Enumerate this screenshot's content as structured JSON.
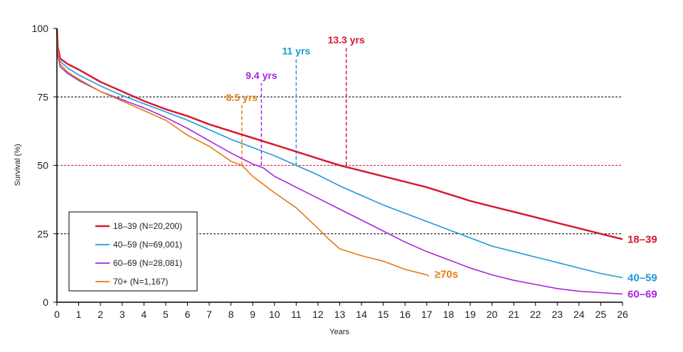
{
  "chart_data": {
    "type": "line",
    "title": "",
    "xlabel": "Years",
    "ylabel": "Survival (%)",
    "xlim": [
      0,
      26
    ],
    "ylim": [
      0,
      100
    ],
    "x_ticks": [
      0,
      1,
      2,
      3,
      4,
      5,
      6,
      7,
      8,
      9,
      10,
      11,
      12,
      13,
      14,
      15,
      16,
      17,
      18,
      19,
      20,
      21,
      22,
      23,
      24,
      25,
      26
    ],
    "y_ticks": [
      0,
      25,
      50,
      75,
      100
    ],
    "reference_lines": [
      {
        "y": 75,
        "color": "#000000",
        "style": "dashed"
      },
      {
        "y": 50,
        "color": "#d7192f",
        "style": "dashed"
      },
      {
        "y": 25,
        "color": "#000000",
        "style": "dashed"
      }
    ],
    "series": [
      {
        "name": "18–39 (N=20,200)",
        "end_label": "18–39",
        "color": "#d7192f",
        "points": [
          [
            0,
            100
          ],
          [
            0.05,
            93
          ],
          [
            0.15,
            89
          ],
          [
            0.5,
            87
          ],
          [
            1,
            85
          ],
          [
            2,
            80.5
          ],
          [
            3,
            77
          ],
          [
            4,
            73.5
          ],
          [
            5,
            70.5
          ],
          [
            6,
            68
          ],
          [
            7,
            65
          ],
          [
            8,
            62.5
          ],
          [
            9,
            60
          ],
          [
            10,
            57.5
          ],
          [
            11,
            55
          ],
          [
            12,
            52.5
          ],
          [
            13,
            50
          ],
          [
            14,
            48
          ],
          [
            15,
            46
          ],
          [
            16,
            44
          ],
          [
            17,
            42
          ],
          [
            18,
            39.5
          ],
          [
            19,
            37
          ],
          [
            20,
            35
          ],
          [
            21,
            33
          ],
          [
            22,
            31
          ],
          [
            23,
            29
          ],
          [
            24,
            27
          ],
          [
            25,
            25
          ],
          [
            26,
            23
          ]
        ]
      },
      {
        "name": "40–59 (N=69,001)",
        "end_label": "40–59",
        "color": "#1e9ad6",
        "points": [
          [
            0,
            100
          ],
          [
            0.05,
            91
          ],
          [
            0.15,
            88
          ],
          [
            0.5,
            85.5
          ],
          [
            1,
            83
          ],
          [
            2,
            79
          ],
          [
            3,
            75.5
          ],
          [
            4,
            72.5
          ],
          [
            5,
            69.5
          ],
          [
            6,
            66.5
          ],
          [
            7,
            63
          ],
          [
            8,
            59.5
          ],
          [
            9,
            56.5
          ],
          [
            10,
            53.5
          ],
          [
            11,
            50
          ],
          [
            12,
            46.5
          ],
          [
            13,
            42.5
          ],
          [
            14,
            39
          ],
          [
            15,
            35.5
          ],
          [
            16,
            32.5
          ],
          [
            17,
            29.5
          ],
          [
            18,
            26.5
          ],
          [
            19,
            23.5
          ],
          [
            20,
            20.5
          ],
          [
            21,
            18.5
          ],
          [
            22,
            16.5
          ],
          [
            23,
            14.5
          ],
          [
            24,
            12.5
          ],
          [
            25,
            10.5
          ],
          [
            26,
            9
          ]
        ]
      },
      {
        "name": "60–69 (N=28,081)",
        "end_label": "60–69",
        "color": "#a626e0",
        "points": [
          [
            0,
            100
          ],
          [
            0.05,
            90
          ],
          [
            0.15,
            86
          ],
          [
            0.5,
            83.5
          ],
          [
            1,
            81
          ],
          [
            2,
            77
          ],
          [
            3,
            74
          ],
          [
            4,
            71
          ],
          [
            5,
            67.5
          ],
          [
            6,
            63.5
          ],
          [
            7,
            59
          ],
          [
            8,
            54.5
          ],
          [
            9,
            50.5
          ],
          [
            9.5,
            49
          ],
          [
            10,
            46
          ],
          [
            11,
            42
          ],
          [
            12,
            38
          ],
          [
            13,
            34
          ],
          [
            14,
            30
          ],
          [
            15,
            26
          ],
          [
            16,
            22
          ],
          [
            17,
            18.5
          ],
          [
            18,
            15.5
          ],
          [
            19,
            12.5
          ],
          [
            20,
            10
          ],
          [
            21,
            8
          ],
          [
            22,
            6.5
          ],
          [
            23,
            5
          ],
          [
            24,
            4
          ],
          [
            25,
            3.5
          ],
          [
            26,
            3
          ]
        ]
      },
      {
        "name": "70+ (N=1,167)",
        "end_label": "≥70s",
        "color": "#e57a14",
        "points": [
          [
            0,
            100
          ],
          [
            0.05,
            92
          ],
          [
            0.15,
            87
          ],
          [
            0.5,
            84
          ],
          [
            1,
            81.5
          ],
          [
            2,
            77
          ],
          [
            3,
            73.5
          ],
          [
            4,
            70
          ],
          [
            5,
            66.5
          ],
          [
            6,
            61
          ],
          [
            7,
            57
          ],
          [
            8,
            51.5
          ],
          [
            8.5,
            50
          ],
          [
            9,
            46
          ],
          [
            10,
            40
          ],
          [
            11,
            34.5
          ],
          [
            12,
            27
          ],
          [
            12.5,
            23
          ],
          [
            13,
            19.5
          ],
          [
            14,
            17
          ],
          [
            15,
            15
          ],
          [
            16,
            12
          ],
          [
            17,
            10
          ],
          [
            17.1,
            9.5
          ]
        ]
      }
    ],
    "medians": [
      {
        "label": "8.5 yrs",
        "color": "#e57a14",
        "x": 8.5,
        "top": 72
      },
      {
        "label": "9.4 yrs",
        "color": "#a626e0",
        "x": 9.4,
        "top": 80
      },
      {
        "label": "11 yrs",
        "color": "#1e9ad6",
        "x": 11,
        "top": 89
      },
      {
        "label": "13.3 yrs",
        "color": "#d7192f",
        "x": 13.3,
        "top": 93
      }
    ],
    "legend": {
      "placement": "bottom-left"
    }
  }
}
